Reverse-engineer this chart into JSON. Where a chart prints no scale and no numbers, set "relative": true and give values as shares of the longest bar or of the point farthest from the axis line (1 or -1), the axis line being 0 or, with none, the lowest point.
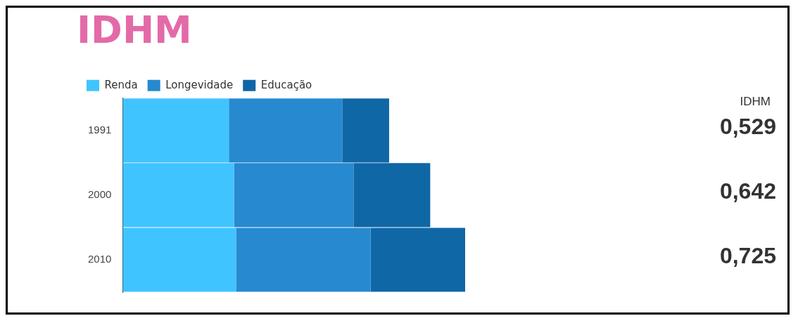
{
  "chart_data": {
    "type": "bar",
    "title": "IDHM",
    "orientation": "horizontal",
    "stacked": true,
    "relative": true,
    "legend": "top left",
    "grid": false,
    "categories": [
      "1991",
      "2000",
      "2010"
    ],
    "series": [
      {
        "name": "Renda",
        "color": "#40c4ff",
        "values": [
          0.31,
          0.325,
          0.331
        ]
      },
      {
        "name": "Longevidade",
        "color": "#2789cf",
        "values": [
          0.331,
          0.349,
          0.393
        ]
      },
      {
        "name": "Educação",
        "color": "#0f67a6",
        "values": [
          0.137,
          0.224,
          0.276
        ]
      }
    ],
    "annotations": [
      "IDHM",
      "0,529",
      "0,642",
      "0,725"
    ]
  }
}
